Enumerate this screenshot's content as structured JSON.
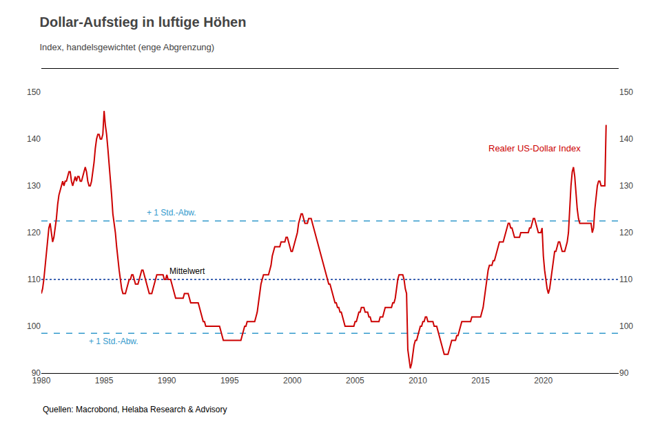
{
  "chart_data": {
    "type": "line",
    "title": "Dollar-Aufstieg in luftige Höhen",
    "subtitle": "Index, handelsgewichtet (enge Abgrenzung)",
    "source": "Quellen: Macrobond, Helaba Research & Advisory",
    "x": [
      1980.0,
      1980.1,
      1980.2,
      1980.3,
      1980.4,
      1980.5,
      1980.6,
      1980.7,
      1980.8,
      1980.9,
      1981.0,
      1981.1,
      1981.2,
      1981.3,
      1981.4,
      1981.5,
      1981.6,
      1981.7,
      1981.8,
      1981.9,
      1982.0,
      1982.1,
      1982.2,
      1982.3,
      1982.4,
      1982.5,
      1982.6,
      1982.7,
      1982.8,
      1982.9,
      1983.0,
      1983.1,
      1983.2,
      1983.3,
      1983.4,
      1983.5,
      1983.6,
      1983.7,
      1983.8,
      1983.9,
      1984.0,
      1984.1,
      1984.2,
      1984.3,
      1984.4,
      1984.5,
      1984.6,
      1984.7,
      1984.8,
      1984.9,
      1985.0,
      1985.1,
      1985.2,
      1985.3,
      1985.4,
      1985.5,
      1985.6,
      1985.7,
      1985.8,
      1985.9,
      1986.0,
      1986.1,
      1986.2,
      1986.3,
      1986.4,
      1986.5,
      1986.6,
      1986.7,
      1986.8,
      1986.9,
      1987.0,
      1987.1,
      1987.2,
      1987.3,
      1987.4,
      1987.5,
      1987.6,
      1987.7,
      1987.8,
      1987.9,
      1988.0,
      1988.1,
      1988.2,
      1988.3,
      1988.4,
      1988.5,
      1988.6,
      1988.7,
      1988.8,
      1988.9,
      1989.0,
      1989.1,
      1989.2,
      1989.3,
      1989.4,
      1989.5,
      1989.6,
      1989.7,
      1989.8,
      1989.9,
      1990.0,
      1990.1,
      1990.2,
      1990.3,
      1990.4,
      1990.5,
      1990.6,
      1990.7,
      1990.8,
      1990.9,
      1991.0,
      1991.1,
      1991.2,
      1991.3,
      1991.4,
      1991.5,
      1991.6,
      1991.7,
      1991.8,
      1991.9,
      1992.0,
      1992.1,
      1992.2,
      1992.3,
      1992.4,
      1992.5,
      1992.6,
      1992.7,
      1992.8,
      1992.9,
      1993.0,
      1993.1,
      1993.2,
      1993.3,
      1993.4,
      1993.5,
      1993.6,
      1993.7,
      1993.8,
      1993.9,
      1994.0,
      1994.1,
      1994.2,
      1994.3,
      1994.4,
      1994.5,
      1994.6,
      1994.7,
      1994.8,
      1994.9,
      1995.0,
      1995.1,
      1995.2,
      1995.3,
      1995.4,
      1995.5,
      1995.6,
      1995.7,
      1995.8,
      1995.9,
      1996.0,
      1996.1,
      1996.2,
      1996.3,
      1996.4,
      1996.5,
      1996.6,
      1996.7,
      1996.8,
      1996.9,
      1997.0,
      1997.1,
      1997.2,
      1997.3,
      1997.4,
      1997.5,
      1997.6,
      1997.7,
      1997.8,
      1997.9,
      1998.0,
      1998.1,
      1998.2,
      1998.3,
      1998.4,
      1998.5,
      1998.6,
      1998.7,
      1998.8,
      1998.9,
      1999.0,
      1999.1,
      1999.2,
      1999.3,
      1999.4,
      1999.5,
      1999.6,
      1999.7,
      1999.8,
      1999.9,
      2000.0,
      2000.1,
      2000.2,
      2000.3,
      2000.4,
      2000.5,
      2000.6,
      2000.7,
      2000.8,
      2000.9,
      2001.0,
      2001.1,
      2001.2,
      2001.3,
      2001.4,
      2001.5,
      2001.6,
      2001.7,
      2001.8,
      2001.9,
      2002.0,
      2002.1,
      2002.2,
      2002.3,
      2002.4,
      2002.5,
      2002.6,
      2002.7,
      2002.8,
      2002.9,
      2003.0,
      2003.1,
      2003.2,
      2003.3,
      2003.4,
      2003.5,
      2003.6,
      2003.7,
      2003.8,
      2003.9,
      2004.0,
      2004.1,
      2004.2,
      2004.3,
      2004.4,
      2004.5,
      2004.6,
      2004.7,
      2004.8,
      2004.9,
      2005.0,
      2005.1,
      2005.2,
      2005.3,
      2005.4,
      2005.5,
      2005.6,
      2005.7,
      2005.8,
      2005.9,
      2006.0,
      2006.1,
      2006.2,
      2006.3,
      2006.4,
      2006.5,
      2006.6,
      2006.7,
      2006.8,
      2006.9,
      2007.0,
      2007.1,
      2007.2,
      2007.3,
      2007.4,
      2007.5,
      2007.6,
      2007.7,
      2007.8,
      2007.9,
      2008.0,
      2008.1,
      2008.2,
      2008.3,
      2008.4,
      2008.5,
      2008.6,
      2008.7,
      2008.8,
      2008.9,
      2009.0,
      2009.1,
      2009.2,
      2009.3,
      2009.4,
      2009.5,
      2009.6,
      2009.7,
      2009.8,
      2009.9,
      2010.0,
      2010.1,
      2010.2,
      2010.3,
      2010.4,
      2010.5,
      2010.6,
      2010.7,
      2010.8,
      2010.9,
      2011.0,
      2011.1,
      2011.2,
      2011.3,
      2011.4,
      2011.5,
      2011.6,
      2011.7,
      2011.8,
      2011.9,
      2012.0,
      2012.1,
      2012.2,
      2012.3,
      2012.4,
      2012.5,
      2012.6,
      2012.7,
      2012.8,
      2012.9,
      2013.0,
      2013.1,
      2013.2,
      2013.3,
      2013.4,
      2013.5,
      2013.6,
      2013.7,
      2013.8,
      2013.9,
      2014.0,
      2014.1,
      2014.2,
      2014.3,
      2014.4,
      2014.5,
      2014.6,
      2014.7,
      2014.8,
      2014.9,
      2015.0,
      2015.1,
      2015.2,
      2015.3,
      2015.4,
      2015.5,
      2015.6,
      2015.7,
      2015.8,
      2015.9,
      2016.0,
      2016.1,
      2016.2,
      2016.3,
      2016.4,
      2016.5,
      2016.6,
      2016.7,
      2016.8,
      2016.9,
      2017.0,
      2017.1,
      2017.2,
      2017.3,
      2017.4,
      2017.5,
      2017.6,
      2017.7,
      2017.8,
      2017.9,
      2018.0,
      2018.1,
      2018.2,
      2018.3,
      2018.4,
      2018.5,
      2018.6,
      2018.7,
      2018.8,
      2018.9,
      2019.0,
      2019.1,
      2019.2,
      2019.3,
      2019.4,
      2019.5,
      2019.6,
      2019.7,
      2019.8,
      2019.9,
      2020.0,
      2020.1,
      2020.2,
      2020.3,
      2020.4,
      2020.5,
      2020.6,
      2020.7,
      2020.8,
      2020.9,
      2021.0,
      2021.1,
      2021.2,
      2021.3,
      2021.4,
      2021.5,
      2021.6,
      2021.7,
      2021.8,
      2021.9,
      2022.0,
      2022.1,
      2022.2,
      2022.3,
      2022.4,
      2022.5,
      2022.6,
      2022.7,
      2022.8,
      2022.9,
      2023.0,
      2023.1,
      2023.2,
      2023.3,
      2023.4,
      2023.5,
      2023.6,
      2023.7,
      2023.8,
      2023.9,
      2024.0,
      2024.1,
      2024.2,
      2024.3,
      2024.4,
      2024.5,
      2024.6,
      2024.7,
      2024.8,
      2024.9,
      2025.0
    ],
    "series": [
      {
        "name": "Realer US-Dollar Index",
        "color": "#cc0000",
        "values": [
          107,
          108,
          110,
          113,
          116,
          119,
          121,
          122,
          120,
          118,
          119,
          121,
          123,
          126,
          128,
          129,
          130,
          131,
          130,
          131,
          131,
          132,
          133,
          133,
          131,
          130,
          131,
          132,
          131,
          132,
          132,
          131,
          131,
          132,
          133,
          134,
          133,
          131,
          130,
          130,
          131,
          133,
          135,
          138,
          140,
          141,
          141,
          140,
          140,
          141,
          146,
          143,
          141,
          138,
          135,
          132,
          128,
          124,
          122,
          120,
          117,
          114,
          112,
          110,
          108,
          107,
          107,
          107,
          108,
          109,
          110,
          110,
          111,
          111,
          110,
          109,
          109,
          109,
          110,
          111,
          112,
          112,
          111,
          110,
          109,
          108,
          107,
          107,
          107,
          108,
          109,
          110,
          111,
          111,
          111,
          111,
          111,
          111,
          110,
          110,
          111,
          110,
          110,
          110,
          109,
          108,
          107,
          106,
          106,
          106,
          106,
          106,
          106,
          106,
          107,
          107,
          107,
          107,
          106,
          105,
          105,
          105,
          105,
          105,
          105,
          105,
          104,
          103,
          102,
          101,
          101,
          100,
          100,
          100,
          100,
          100,
          100,
          100,
          100,
          100,
          100,
          100,
          100,
          99,
          98,
          97,
          97,
          97,
          97,
          97,
          97,
          97,
          97,
          97,
          97,
          97,
          97,
          97,
          97,
          97,
          98,
          99,
          100,
          100,
          101,
          101,
          101,
          101,
          101,
          101,
          101,
          102,
          103,
          105,
          107,
          109,
          110,
          111,
          111,
          111,
          111,
          111,
          112,
          113,
          115,
          116,
          117,
          117,
          117,
          117,
          117,
          118,
          118,
          118,
          118,
          119,
          119,
          118,
          117,
          116,
          116,
          117,
          118,
          119,
          120,
          122,
          123,
          124,
          124,
          123,
          122,
          122,
          122,
          123,
          123,
          123,
          122,
          121,
          120,
          119,
          118,
          117,
          116,
          115,
          114,
          113,
          112,
          111,
          110,
          109,
          109,
          108,
          107,
          106,
          105,
          105,
          104,
          104,
          103,
          103,
          102,
          101,
          100,
          100,
          100,
          100,
          100,
          100,
          100,
          100,
          101,
          101,
          102,
          103,
          103,
          104,
          104,
          104,
          103,
          103,
          103,
          102,
          102,
          101,
          101,
          101,
          101,
          101,
          101,
          101,
          102,
          102,
          102,
          103,
          104,
          104,
          104,
          104,
          104,
          104,
          105,
          105,
          106,
          108,
          110,
          111,
          111,
          111,
          111,
          110,
          108,
          107,
          95,
          93,
          91,
          92,
          94,
          96,
          97,
          97,
          98,
          99,
          100,
          100,
          101,
          101,
          102,
          102,
          101,
          101,
          101,
          101,
          101,
          100,
          100,
          100,
          99,
          98,
          97,
          96,
          95,
          94,
          94,
          94,
          94,
          95,
          96,
          97,
          97,
          97,
          97,
          98,
          98,
          99,
          100,
          101,
          101,
          101,
          101,
          101,
          101,
          101,
          101,
          102,
          102,
          102,
          102,
          102,
          102,
          102,
          102,
          103,
          104,
          106,
          108,
          110,
          112,
          113,
          113,
          113,
          114,
          114,
          115,
          116,
          117,
          118,
          118,
          118,
          118,
          119,
          120,
          121,
          122,
          122,
          121,
          121,
          120,
          119,
          119,
          119,
          119,
          119,
          120,
          120,
          120,
          120,
          120,
          120,
          120,
          121,
          121,
          122,
          123,
          123,
          122,
          121,
          120,
          120,
          120,
          121,
          115,
          112,
          110,
          108,
          107,
          108,
          110,
          112,
          114,
          116,
          116,
          117,
          118,
          118,
          117,
          116,
          116,
          116,
          117,
          118,
          120,
          126,
          130,
          133,
          134,
          132,
          128,
          125,
          123,
          122,
          122,
          122,
          122,
          122,
          122,
          122,
          122,
          122,
          122,
          120,
          121,
          125,
          128,
          130,
          131,
          131,
          130,
          130,
          130,
          130,
          143
        ]
      }
    ],
    "reference_lines": [
      {
        "name": "Mittelwert",
        "value": 110.0,
        "color": "#003399",
        "line_style": "dotted"
      },
      {
        "name": "+ 1 Std.-Abw.",
        "value": 122.5,
        "color": "#3399cc",
        "line_style": "dashed"
      },
      {
        "name": "+ 1 Std.-Abw.",
        "value": 98.5,
        "color": "#3399cc",
        "line_style": "dashed"
      }
    ],
    "xlim": [
      1980,
      2026
    ],
    "xticks": [
      1980,
      1985,
      1990,
      1995,
      2000,
      2005,
      2010,
      2015,
      2020
    ],
    "ylim": [
      90,
      155
    ],
    "yticks": [
      90,
      100,
      110,
      120,
      130,
      140,
      150
    ],
    "y2lim": [
      90,
      155
    ],
    "y2ticks": [
      90,
      100,
      110,
      120,
      130,
      140,
      150
    ],
    "grid": false
  }
}
